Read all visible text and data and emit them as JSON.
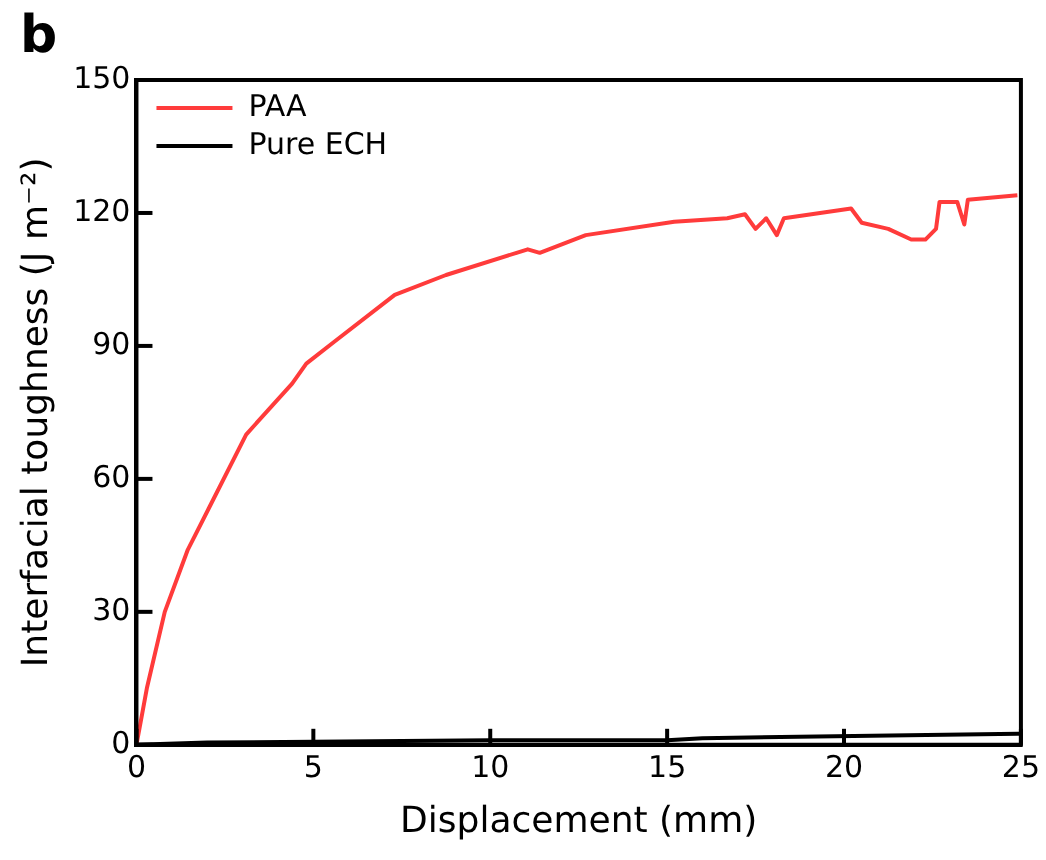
{
  "chart_data": {
    "type": "line",
    "title": "b",
    "xlabel": "Displacement (mm)",
    "ylabel": "Interfacial toughness (J m⁻²)",
    "xlim": [
      0,
      25
    ],
    "xticks": [
      0,
      5,
      10,
      15,
      20,
      25
    ],
    "ylim": [
      0,
      150
    ],
    "yticks": [
      0,
      30,
      60,
      90,
      120,
      150
    ],
    "grid": false,
    "legend": "top left",
    "marker": "none",
    "line_style": "solid",
    "series": [
      {
        "name": "PAA",
        "color": "#ff3b3b",
        "x": [
          0,
          0.3,
          0.8,
          1.45,
          2.06,
          3.1,
          4.4,
          4.8,
          5.6,
          7.3,
          8.75,
          11.06,
          11.4,
          12.7,
          15.2,
          16.7,
          17.2,
          17.5,
          17.8,
          18.1,
          18.3,
          20.2,
          20.5,
          21.25,
          21.9,
          22.3,
          22.6,
          22.7,
          23.2,
          23.4,
          23.5,
          24.9
        ],
        "values": [
          0,
          13,
          30,
          44,
          53.6,
          70,
          81.5,
          86,
          91,
          101.5,
          106,
          111.8,
          111,
          115,
          118,
          118.8,
          119.7,
          116.4,
          118.8,
          115,
          118.8,
          121,
          117.8,
          116.4,
          114,
          114,
          116.4,
          122.5,
          122.5,
          117.4,
          123,
          124
        ]
      },
      {
        "name": "Pure ECH",
        "color": "#000000",
        "x": [
          0,
          2,
          10,
          15,
          16,
          25
        ],
        "values": [
          0,
          0.5,
          1,
          1,
          1.5,
          2.5
        ]
      }
    ]
  }
}
